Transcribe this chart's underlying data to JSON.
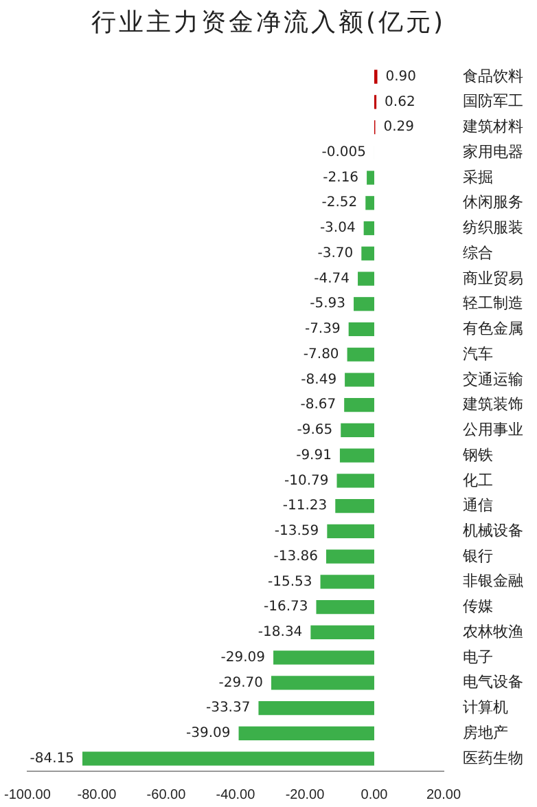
{
  "chart_data": {
    "type": "bar",
    "orientation": "horizontal",
    "title": "行业主力资金净流入额(亿元)",
    "categories": [
      "食品饮料",
      "国防军工",
      "建筑材料",
      "家用电器",
      "采掘",
      "休闲服务",
      "纺织服装",
      "综合",
      "商业贸易",
      "轻工制造",
      "有色金属",
      "汽车",
      "交通运输",
      "建筑装饰",
      "公用事业",
      "钢铁",
      "化工",
      "通信",
      "机械设备",
      "银行",
      "非银金融",
      "传媒",
      "农林牧渔",
      "电子",
      "电气设备",
      "计算机",
      "房地产",
      "医药生物"
    ],
    "values": [
      0.9,
      0.62,
      0.29,
      -0.005,
      -2.16,
      -2.52,
      -3.04,
      -3.7,
      -4.74,
      -5.93,
      -7.39,
      -7.8,
      -8.49,
      -8.67,
      -9.65,
      -9.91,
      -10.79,
      -11.23,
      -13.59,
      -13.86,
      -15.53,
      -16.73,
      -18.34,
      -29.09,
      -29.7,
      -33.37,
      -39.09,
      -84.15
    ],
    "value_labels": [
      "0.90",
      "0.62",
      "0.29",
      "-0.005",
      "-2.16",
      "-2.52",
      "-3.04",
      "-3.70",
      "-4.74",
      "-5.93",
      "-7.39",
      "-7.80",
      "-8.49",
      "-8.67",
      "-9.65",
      "-9.91",
      "-10.79",
      "-11.23",
      "-13.59",
      "-13.86",
      "-15.53",
      "-16.73",
      "-18.34",
      "-29.09",
      "-29.70",
      "-33.37",
      "-39.09",
      "-84.15"
    ],
    "colors": [
      "#c00000",
      "#c00000",
      "#c00000",
      "#3cb04a",
      "#3cb04a",
      "#3cb04a",
      "#3cb04a",
      "#3cb04a",
      "#3cb04a",
      "#3cb04a",
      "#3cb04a",
      "#3cb04a",
      "#3cb04a",
      "#3cb04a",
      "#3cb04a",
      "#3cb04a",
      "#3cb04a",
      "#3cb04a",
      "#3cb04a",
      "#3cb04a",
      "#3cb04a",
      "#3cb04a",
      "#3cb04a",
      "#3cb04a",
      "#3cb04a",
      "#3cb04a",
      "#3cb04a",
      "#3cb04a"
    ],
    "xlim": [
      -100,
      20
    ],
    "xticks": [
      {
        "value": -100,
        "label": "-100.00"
      },
      {
        "value": -80,
        "label": "-80.00"
      },
      {
        "value": -60,
        "label": "-60.00"
      },
      {
        "value": -40,
        "label": "-40.00"
      },
      {
        "value": -20,
        "label": "-20.00"
      },
      {
        "value": 0,
        "label": "0.00"
      },
      {
        "value": 20,
        "label": "20.00"
      }
    ],
    "grid": false,
    "legend": false
  }
}
